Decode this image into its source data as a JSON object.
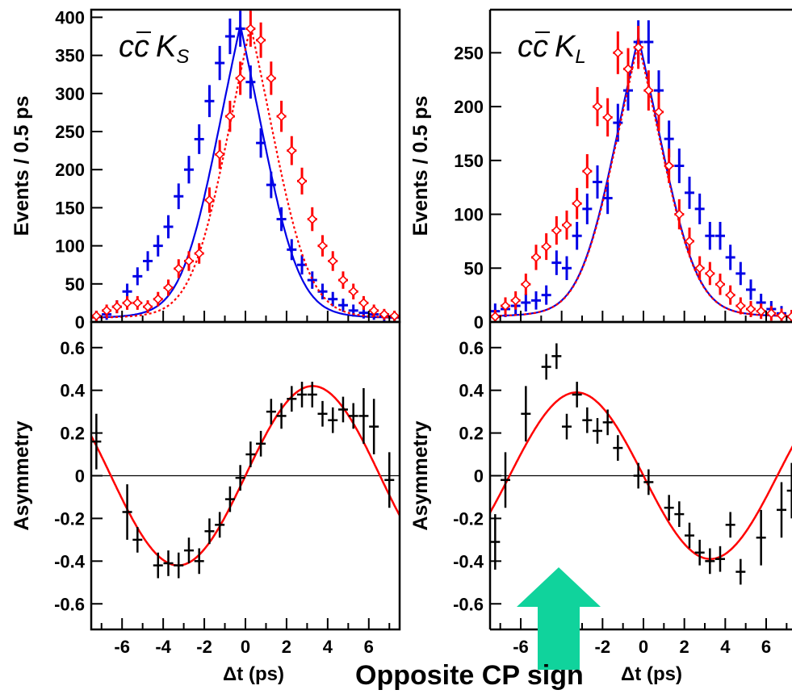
{
  "chart_data": [
    {
      "type": "scatter",
      "panel": "top-left",
      "label": "cc̄ KS",
      "label_main": "cc",
      "label_K": "K",
      "label_sub": "S",
      "ylabel": "Events / 0.5 ps",
      "ylim": [
        0,
        410
      ],
      "yticks": [
        0,
        50,
        100,
        150,
        200,
        250,
        300,
        350,
        400
      ],
      "xlim": [
        -7.5,
        7.5
      ],
      "colors": {
        "blue": "#0000e6",
        "red": "#ff0000"
      },
      "series": [
        {
          "style": "blue-cross",
          "fit": "blue-solid",
          "x": [
            -7.25,
            -6.75,
            -6.25,
            -5.75,
            -5.25,
            -4.75,
            -4.25,
            -3.75,
            -3.25,
            -2.75,
            -2.25,
            -1.75,
            -1.25,
            -0.75,
            -0.25,
            0.25,
            0.75,
            1.25,
            1.75,
            2.25,
            2.75,
            3.25,
            3.75,
            4.25,
            4.75,
            5.25,
            5.75,
            6.25,
            6.75,
            7.25
          ],
          "y": [
            8,
            10,
            20,
            40,
            60,
            80,
            100,
            125,
            165,
            200,
            240,
            290,
            340,
            375,
            385,
            315,
            235,
            180,
            135,
            95,
            75,
            55,
            40,
            30,
            22,
            15,
            12,
            10,
            8,
            6
          ]
        },
        {
          "style": "red-diamond",
          "fit": "red-dotted",
          "x": [
            -7.25,
            -6.75,
            -6.25,
            -5.75,
            -5.25,
            -4.75,
            -4.25,
            -3.75,
            -3.25,
            -2.75,
            -2.25,
            -1.75,
            -1.25,
            -0.75,
            -0.25,
            0.25,
            0.75,
            1.25,
            1.75,
            2.25,
            2.75,
            3.25,
            3.75,
            4.25,
            4.75,
            5.25,
            5.75,
            6.25,
            6.75,
            7.25
          ],
          "y": [
            8,
            15,
            20,
            25,
            25,
            20,
            30,
            45,
            70,
            80,
            90,
            160,
            220,
            270,
            320,
            385,
            370,
            320,
            270,
            225,
            185,
            135,
            100,
            80,
            55,
            40,
            25,
            15,
            10,
            8
          ]
        }
      ]
    },
    {
      "type": "scatter",
      "panel": "top-right",
      "label": "cc̄ KL",
      "label_main": "cc",
      "label_K": "K",
      "label_sub": "L",
      "ylabel": "Events / 0.5 ps",
      "ylim": [
        0,
        290
      ],
      "yticks": [
        0,
        50,
        100,
        150,
        200,
        250
      ],
      "xlim": [
        -7.5,
        7.5
      ],
      "series": [
        {
          "style": "blue-cross",
          "fit": "blue-solid",
          "x": [
            -7.25,
            -6.75,
            -6.25,
            -5.75,
            -5.25,
            -4.75,
            -4.25,
            -3.75,
            -3.25,
            -2.75,
            -2.25,
            -1.75,
            -1.25,
            -0.75,
            -0.25,
            0.25,
            0.75,
            1.25,
            1.75,
            2.25,
            2.75,
            3.25,
            3.75,
            4.25,
            4.75,
            5.25,
            5.75,
            6.25,
            6.75,
            7.25
          ],
          "y": [
            10,
            12,
            15,
            18,
            20,
            25,
            55,
            50,
            80,
            105,
            130,
            115,
            185,
            215,
            260,
            260,
            215,
            170,
            145,
            120,
            105,
            80,
            80,
            60,
            45,
            30,
            18,
            12,
            8,
            5
          ]
        },
        {
          "style": "red-diamond",
          "fit": "red-dotted",
          "x": [
            -7.25,
            -6.75,
            -6.25,
            -5.75,
            -5.25,
            -4.75,
            -4.25,
            -3.75,
            -3.25,
            -2.75,
            -2.25,
            -1.75,
            -1.25,
            -0.75,
            -0.25,
            0.25,
            0.75,
            1.25,
            1.75,
            2.25,
            2.75,
            3.25,
            3.75,
            4.25,
            4.75,
            5.25,
            5.75,
            6.25,
            6.75,
            7.25
          ],
          "y": [
            5,
            15,
            20,
            35,
            60,
            70,
            85,
            90,
            110,
            140,
            200,
            190,
            250,
            235,
            255,
            215,
            195,
            145,
            100,
            75,
            50,
            45,
            35,
            25,
            15,
            12,
            10,
            8,
            6,
            5
          ]
        }
      ]
    },
    {
      "type": "scatter",
      "panel": "bottom-left",
      "ylabel": "Asymmetry",
      "xlabel": "Δt (ps)",
      "ylim": [
        -0.72,
        0.72
      ],
      "yticks": [
        -0.6,
        -0.4,
        -0.2,
        0,
        0.2,
        0.4,
        0.6
      ],
      "xlim": [
        -7.5,
        7.5
      ],
      "xticks": [
        -6,
        -4,
        -2,
        0,
        2,
        4,
        6
      ],
      "points": {
        "x": [
          -7.25,
          -5.75,
          -5.25,
          -4.25,
          -3.75,
          -3.25,
          -2.75,
          -2.25,
          -1.75,
          -1.25,
          -0.75,
          -0.25,
          0.25,
          0.75,
          1.25,
          1.75,
          2.25,
          2.75,
          3.25,
          3.75,
          4.25,
          4.75,
          5.25,
          5.75,
          6.25,
          7.0
        ],
        "y": [
          0.16,
          -0.17,
          -0.3,
          -0.42,
          -0.41,
          -0.42,
          -0.35,
          -0.4,
          -0.26,
          -0.23,
          -0.11,
          -0.01,
          0.1,
          0.15,
          0.3,
          0.28,
          0.36,
          0.38,
          0.38,
          0.29,
          0.26,
          0.31,
          0.28,
          0.28,
          0.23,
          -0.02
        ]
      },
      "fit": {
        "amplitude": 0.42,
        "phase_sign": 1
      }
    },
    {
      "type": "scatter",
      "panel": "bottom-right",
      "ylabel": "Asymmetry",
      "xlabel": "Δt (ps)",
      "ylim": [
        -0.72,
        0.72
      ],
      "yticks": [
        -0.6,
        -0.4,
        -0.2,
        0,
        0.2,
        0.4,
        0.6
      ],
      "xlim": [
        -7.5,
        7.5
      ],
      "xticks": [
        -6,
        -4,
        -2,
        0,
        2,
        4,
        6
      ],
      "points": {
        "x": [
          -7.25,
          -6.75,
          -5.75,
          -4.75,
          -4.25,
          -3.75,
          -3.25,
          -2.75,
          -2.25,
          -1.75,
          -1.25,
          -0.25,
          0.25,
          1.25,
          1.75,
          2.25,
          2.75,
          3.25,
          3.75,
          4.25,
          4.75,
          5.75,
          6.75,
          7.25
        ],
        "y": [
          -0.31,
          -0.02,
          0.29,
          0.51,
          0.56,
          0.23,
          0.38,
          0.26,
          0.21,
          0.25,
          0.13,
          0.0,
          -0.03,
          -0.15,
          -0.18,
          -0.28,
          -0.36,
          -0.4,
          -0.39,
          -0.23,
          -0.45,
          -0.29,
          -0.16,
          -0.07
        ]
      },
      "fit": {
        "amplitude": 0.39,
        "phase_sign": -1
      }
    }
  ],
  "caption_partial": "Opposite CP sign",
  "arrow_color": "#10d39c"
}
